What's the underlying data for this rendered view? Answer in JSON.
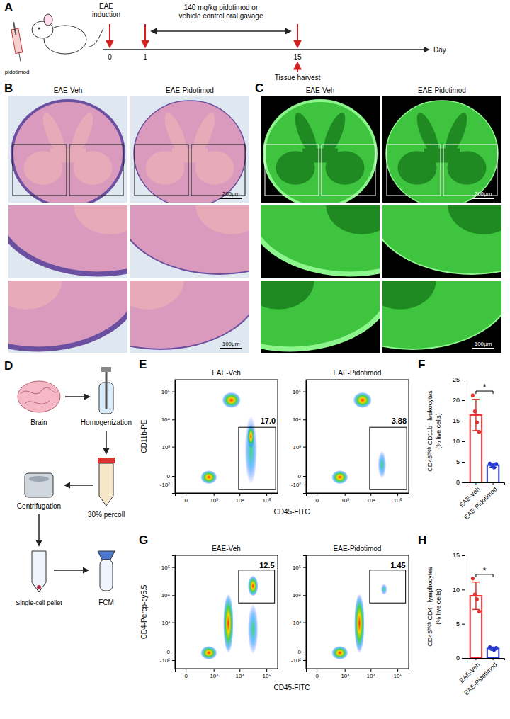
{
  "figure": {
    "letters": [
      "A",
      "B",
      "C",
      "D",
      "E",
      "F",
      "G",
      "H"
    ],
    "A": {
      "syringe_label": "pidotimod",
      "induction": "EAE induction",
      "treatment": "140 mg/kg pidotimod or vehicle control oral gavage",
      "days": [
        0,
        1,
        15
      ],
      "harvest": "Tissue harvest",
      "axis_label": "Day"
    },
    "B": {
      "columns": [
        "EAE-Veh",
        "EAE-Pidotimod"
      ],
      "scale_bars": [
        "200μm",
        "100μm"
      ]
    },
    "C": {
      "columns": [
        "EAE-Veh",
        "EAE-Pidotimod"
      ],
      "scale_bars": [
        "200μm",
        "100μm"
      ]
    },
    "D": {
      "steps": [
        "Brain",
        "Homogenization",
        "30% percoll",
        "Centrifugation",
        "Single-cell pellet",
        "FCM"
      ]
    }
  },
  "chart_data": [
    {
      "type": "flow",
      "log": true,
      "xlabel": "CD45-FITC",
      "ylabel": "CD11b-PE",
      "xlim": [
        -150,
        262144
      ],
      "ylim": [
        -300,
        262144
      ],
      "xticks": [
        0,
        {
          "value": 1000,
          "label": "10³"
        },
        {
          "value": 10000,
          "label": "10⁴"
        },
        {
          "value": 100000,
          "label": "10⁵"
        }
      ],
      "yticks": [
        {
          "value": -100,
          "label": "-10²"
        },
        0,
        {
          "value": 1000,
          "label": "10³"
        },
        {
          "value": 10000,
          "label": "10⁴"
        },
        {
          "value": 100000,
          "label": "10⁵"
        }
      ],
      "samples": [
        {
          "title": "EAE-Veh",
          "gate": {
            "value": 17.0,
            "label": "17.0"
          }
        },
        {
          "title": "EAE-Pidotimod",
          "gate": {
            "value": 3.88,
            "label": "3.88"
          }
        }
      ]
    },
    {
      "type": "bar",
      "categories": [
        "EAE-Veh",
        "EAE-Pidotimod"
      ],
      "values": [
        16.4,
        4.2
      ],
      "errors": [
        3.8,
        0.5
      ],
      "points": [
        [
          21.2,
          17.3,
          14.6,
          12.3
        ],
        [
          4.6,
          4.2,
          3.6,
          4.5
        ]
      ],
      "colors": [
        "#e8302e",
        "#2a3bd1"
      ],
      "ylabel": [
        "CD45ʰⁱᵍʰ CD11b⁺ leukocytes",
        "(% live cells)"
      ],
      "ylim": [
        0,
        25
      ],
      "yticks": [
        0,
        5,
        10,
        15,
        20,
        25
      ],
      "annotations": [
        "*"
      ]
    },
    {
      "type": "flow",
      "log": true,
      "xlabel": "CD45-FITC",
      "ylabel": "CD4-Percp-cy5.5",
      "xlim": [
        -150,
        262144
      ],
      "ylim": [
        -300,
        262144
      ],
      "xticks": [
        0,
        {
          "value": 1000,
          "label": "10³"
        },
        {
          "value": 10000,
          "label": "10⁴"
        },
        {
          "value": 100000,
          "label": "10⁵"
        }
      ],
      "yticks": [
        {
          "value": -100,
          "label": "-10²"
        },
        0,
        {
          "value": 1000,
          "label": "10³"
        },
        {
          "value": 10000,
          "label": "10⁴"
        },
        {
          "value": 100000,
          "label": "10⁵"
        }
      ],
      "samples": [
        {
          "title": "EAE-Veh",
          "gate": {
            "value": 12.5,
            "label": "12.5"
          }
        },
        {
          "title": "EAE-Pidotimod",
          "gate": {
            "value": 1.45,
            "label": "1.45"
          }
        }
      ]
    },
    {
      "type": "bar",
      "categories": [
        "EAE-Veh",
        "EAE-Pidotimod"
      ],
      "values": [
        9.1,
        1.4
      ],
      "errors": [
        2.0,
        0.2
      ],
      "points": [
        [
          11.6,
          9.3,
          8.6,
          6.8
        ],
        [
          1.6,
          1.3,
          1.2,
          1.5
        ]
      ],
      "colors": [
        "#e8302e",
        "#2a3bd1"
      ],
      "ylabel": [
        "CD45ʰⁱᵍʰ CD4⁺ lymphocytes",
        "(% live cells)"
      ],
      "ylim": [
        0,
        15
      ],
      "yticks": [
        0,
        5,
        10,
        15
      ],
      "annotations": [
        "*"
      ]
    }
  ]
}
